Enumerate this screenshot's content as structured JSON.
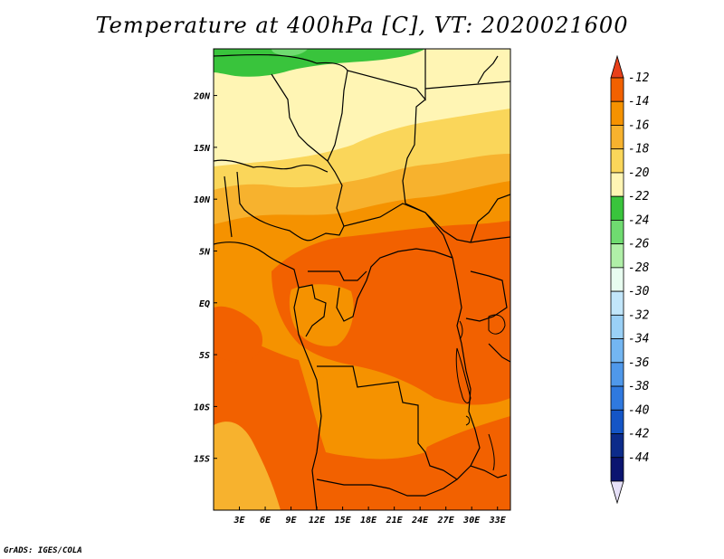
{
  "title": "Temperature at 400hPa [C], VT: 2020021600",
  "credit": "GrADS: IGES/COLA",
  "map": {
    "region": "Central Africa",
    "variable": "Temperature",
    "level": "400hPa",
    "units": "C",
    "valid_time": "2020021600",
    "lon_range": [
      0,
      34.5
    ],
    "lat_range": [
      -20,
      24.5
    ],
    "lon_ticks": [
      "3E",
      "6E",
      "9E",
      "12E",
      "15E",
      "18E",
      "21E",
      "24E",
      "27E",
      "30E",
      "33E"
    ],
    "lat_ticks": [
      "20N",
      "15N",
      "10N",
      "5N",
      "EQ",
      "5S",
      "10S",
      "15S"
    ]
  },
  "colorbar": {
    "labels": [
      "-12",
      "-14",
      "-16",
      "-18",
      "-20",
      "-22",
      "-24",
      "-26",
      "-28",
      "-30",
      "-32",
      "-34",
      "-36",
      "-38",
      "-40",
      "-42",
      "-44"
    ],
    "colors": [
      "#e8401a",
      "#f26100",
      "#f59200",
      "#f7b22e",
      "#fad65a",
      "#fff5b4",
      "#39c43c",
      "#6fdb70",
      "#b0efa8",
      "#e8fdf0",
      "#c2e6fa",
      "#9ad0f6",
      "#73b6f2",
      "#4f98ea",
      "#2f79df",
      "#1455c6",
      "#0c2b8a",
      "#0b1470",
      "#e6e0f8"
    ]
  }
}
